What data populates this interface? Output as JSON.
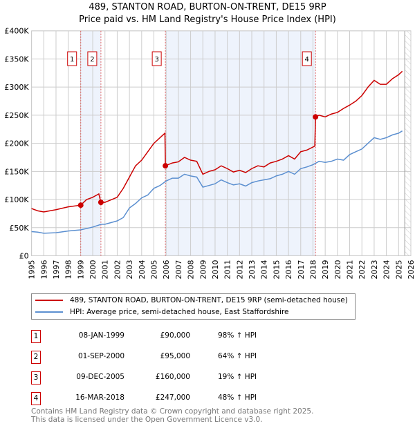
{
  "chart_data": {
    "type": "line",
    "title": "489, STANTON ROAD, BURTON-ON-TRENT, DE15 9RP",
    "subtitle": "Price paid vs. HM Land Registry's House Price Index (HPI)",
    "xlim": [
      1995,
      2026
    ],
    "ylim": [
      0,
      400000
    ],
    "x_ticks": [
      "1995",
      "1996",
      "1997",
      "1998",
      "1999",
      "2000",
      "2001",
      "2002",
      "2003",
      "2004",
      "2005",
      "2006",
      "2007",
      "2008",
      "2009",
      "2010",
      "2011",
      "2012",
      "2013",
      "2014",
      "2015",
      "2016",
      "2017",
      "2018",
      "2019",
      "2020",
      "2021",
      "2022",
      "2023",
      "2024",
      "2025",
      "2026"
    ],
    "y_ticks": [
      {
        "v": 0,
        "label": "£0"
      },
      {
        "v": 50000,
        "label": "£50K"
      },
      {
        "v": 100000,
        "label": "£100K"
      },
      {
        "v": 150000,
        "label": "£150K"
      },
      {
        "v": 200000,
        "label": "£200K"
      },
      {
        "v": 250000,
        "label": "£250K"
      },
      {
        "v": 300000,
        "label": "£300K"
      },
      {
        "v": 350000,
        "label": "£350K"
      },
      {
        "v": 400000,
        "label": "£400K"
      }
    ],
    "grid": true,
    "series": [
      {
        "name": "489, STANTON ROAD, BURTON-ON-TRENT, DE15 9RP (semi-detached house)",
        "color": "#cc0000",
        "x": [
          1995,
          1995.5,
          1996,
          1997,
          1998,
          1999.02,
          1999.5,
          2000,
          2000.5,
          2000.67,
          2001,
          2002,
          2002.5,
          2003,
          2003.5,
          2004,
          2004.5,
          2005,
          2005.5,
          2005.9,
          2005.94,
          2006.5,
          2007,
          2007.5,
          2008,
          2008.5,
          2009,
          2009.5,
          2010,
          2010.5,
          2011,
          2011.5,
          2012,
          2012.5,
          2013,
          2013.5,
          2014,
          2014.5,
          2015,
          2015.5,
          2016,
          2016.5,
          2017,
          2017.5,
          2018.15,
          2018.21,
          2018.5,
          2019,
          2019.5,
          2020,
          2020.5,
          2021,
          2021.5,
          2022,
          2022.5,
          2023,
          2023.5,
          2024,
          2024.5,
          2025,
          2025.3
        ],
        "y": [
          84,
          80,
          78,
          82,
          87,
          90,
          100,
          104,
          110,
          95,
          95,
          104,
          120,
          140,
          160,
          170,
          185,
          200,
          210,
          218,
          160,
          165,
          167,
          175,
          170,
          168,
          145,
          150,
          153,
          160,
          155,
          149,
          152,
          148,
          155,
          160,
          158,
          165,
          168,
          172,
          178,
          172,
          185,
          188,
          195,
          247,
          250,
          247,
          252,
          255,
          262,
          268,
          275,
          285,
          300,
          312,
          305,
          305,
          315,
          322,
          328
        ]
      },
      {
        "name": "HPI: Average price, semi-detached house, East Staffordshire",
        "color": "#5b8fd0",
        "x": [
          1995,
          1995.5,
          1996,
          1997,
          1998,
          1999,
          2000,
          2000.7,
          2001,
          2002,
          2002.5,
          2003,
          2003.5,
          2004,
          2004.5,
          2005,
          2005.5,
          2006,
          2006.5,
          2007,
          2007.5,
          2008,
          2008.5,
          2009,
          2009.5,
          2010,
          2010.5,
          2011,
          2011.5,
          2012,
          2012.5,
          2013,
          2013.5,
          2014,
          2014.5,
          2015,
          2015.5,
          2016,
          2016.5,
          2017,
          2017.5,
          2018,
          2018.5,
          2019,
          2019.5,
          2020,
          2020.5,
          2021,
          2021.5,
          2022,
          2022.5,
          2023,
          2023.5,
          2024,
          2024.5,
          2025,
          2025.3
        ],
        "y": [
          43,
          42,
          40,
          41,
          44,
          46,
          51,
          56,
          56,
          62,
          68,
          85,
          93,
          103,
          108,
          120,
          125,
          133,
          138,
          138,
          145,
          142,
          140,
          122,
          125,
          128,
          135,
          130,
          126,
          128,
          124,
          130,
          133,
          135,
          137,
          142,
          145,
          150,
          145,
          155,
          158,
          162,
          168,
          166,
          168,
          172,
          170,
          180,
          185,
          190,
          200,
          210,
          207,
          210,
          215,
          218,
          222
        ]
      }
    ],
    "y_units": "thousands GBP",
    "sales": [
      {
        "n": "1",
        "x": 1999.02,
        "y": 90,
        "date": "08-JAN-1999",
        "price": "£90,000",
        "hpi": "98% ↑ HPI"
      },
      {
        "n": "2",
        "x": 2000.67,
        "y": 95,
        "date": "01-SEP-2000",
        "price": "£95,000",
        "hpi": "64% ↑ HPI"
      },
      {
        "n": "3",
        "x": 2005.94,
        "y": 160,
        "date": "09-DEC-2005",
        "price": "£160,000",
        "hpi": "19% ↑ HPI"
      },
      {
        "n": "4",
        "x": 2018.21,
        "y": 247,
        "date": "16-MAR-2018",
        "price": "£247,000",
        "hpi": "48% ↑ HPI"
      }
    ],
    "shaded": [
      [
        1999.02,
        2000.67
      ],
      [
        2005.94,
        2018.21
      ]
    ],
    "future_from": 2025.5,
    "legend_position": "below"
  },
  "footer": [
    "Contains HM Land Registry data © Crown copyright and database right 2025.",
    "This data is licensed under the Open Government Licence v3.0."
  ]
}
